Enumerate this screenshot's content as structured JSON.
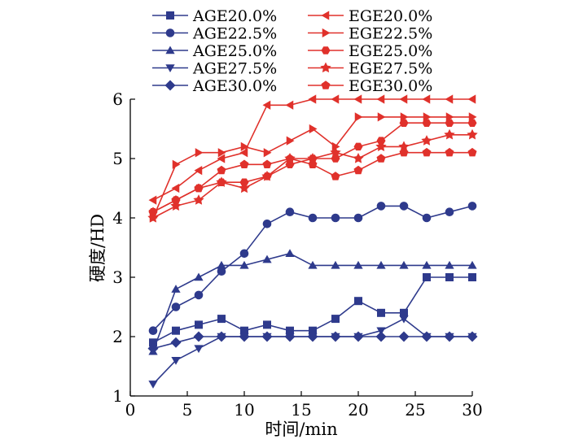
{
  "chart_data": {
    "type": "line",
    "xlabel": "时间/min",
    "ylabel": "硬度/HD",
    "xlim": [
      0,
      30
    ],
    "ylim": [
      1,
      6
    ],
    "xticks": [
      0,
      5,
      10,
      15,
      20,
      25,
      30
    ],
    "yticks": [
      1,
      2,
      3,
      4,
      5,
      6
    ],
    "grid": false,
    "legend_position": "top",
    "x": [
      2,
      4,
      6,
      8,
      10,
      12,
      14,
      16,
      18,
      20,
      22,
      24,
      26,
      28,
      30
    ],
    "series": [
      {
        "name": "AGE20.0%",
        "color": "#2e3a8c",
        "marker": "square",
        "values": [
          1.9,
          2.1,
          2.2,
          2.3,
          2.1,
          2.2,
          2.1,
          2.1,
          2.3,
          2.6,
          2.4,
          2.4,
          3.0,
          3.0,
          3.0
        ]
      },
      {
        "name": "AGE22.5%",
        "color": "#2e3a8c",
        "marker": "circle",
        "values": [
          2.1,
          2.5,
          2.7,
          3.1,
          3.4,
          3.9,
          4.1,
          4.0,
          4.0,
          4.0,
          4.2,
          4.2,
          4.0,
          4.1,
          4.2
        ]
      },
      {
        "name": "AGE25.0%",
        "color": "#2e3a8c",
        "marker": "triangle-up",
        "values": [
          1.75,
          2.8,
          3.0,
          3.2,
          3.2,
          3.3,
          3.4,
          3.2,
          3.2,
          3.2,
          3.2,
          3.2,
          3.2,
          3.2,
          3.2
        ]
      },
      {
        "name": "AGE27.5%",
        "color": "#2e3a8c",
        "marker": "triangle-down",
        "values": [
          1.2,
          1.6,
          1.8,
          2.0,
          2.0,
          2.0,
          2.0,
          2.0,
          2.0,
          2.0,
          2.1,
          2.3,
          2.0,
          2.0,
          2.0
        ]
      },
      {
        "name": "AGE30.0%",
        "color": "#2e3a8c",
        "marker": "diamond",
        "values": [
          1.8,
          1.9,
          2.0,
          2.0,
          2.0,
          2.0,
          2.0,
          2.0,
          2.0,
          2.0,
          2.0,
          2.0,
          2.0,
          2.0,
          2.0
        ]
      },
      {
        "name": "EGE20.0%",
        "color": "#e0312b",
        "marker": "triangle-left",
        "values": [
          4.3,
          4.5,
          4.8,
          5.0,
          5.1,
          5.9,
          5.9,
          6.0,
          6.0,
          6.0,
          6.0,
          6.0,
          6.0,
          6.0,
          6.0
        ]
      },
      {
        "name": "EGE22.5%",
        "color": "#e0312b",
        "marker": "triangle-right",
        "values": [
          4.0,
          4.9,
          5.1,
          5.1,
          5.2,
          5.1,
          5.3,
          5.5,
          5.2,
          5.7,
          5.7,
          5.7,
          5.7,
          5.7,
          5.7
        ]
      },
      {
        "name": "EGE25.0%",
        "color": "#e0312b",
        "marker": "hexagon",
        "values": [
          4.1,
          4.3,
          4.5,
          4.6,
          4.6,
          4.7,
          4.9,
          5.0,
          5.0,
          5.2,
          5.3,
          5.6,
          5.6,
          5.6,
          5.6
        ]
      },
      {
        "name": "EGE27.5%",
        "color": "#e0312b",
        "marker": "star",
        "values": [
          4.0,
          4.2,
          4.3,
          4.6,
          4.5,
          4.7,
          5.0,
          5.0,
          5.1,
          5.0,
          5.2,
          5.2,
          5.3,
          5.4,
          5.4
        ]
      },
      {
        "name": "EGE30.0%",
        "color": "#e0312b",
        "marker": "pentagon",
        "values": [
          4.1,
          4.3,
          4.5,
          4.8,
          4.9,
          4.9,
          5.0,
          4.9,
          4.7,
          4.8,
          5.0,
          5.1,
          5.1,
          5.1,
          5.1
        ]
      }
    ]
  }
}
